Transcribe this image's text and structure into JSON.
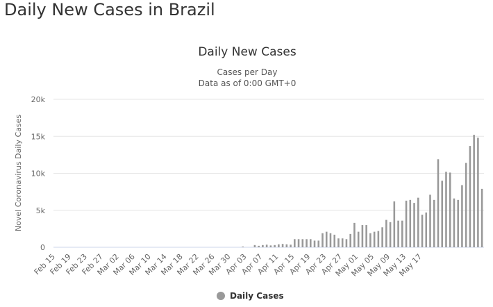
{
  "page": {
    "heading": "Daily New Cases in Brazil"
  },
  "chart_data": {
    "type": "bar",
    "title": "Daily New Cases",
    "subtitle_lines": [
      "Cases per Day",
      "Data as of 0:00 GMT+0"
    ],
    "ylabel": "Novel Coronavirus Daily Cases",
    "xlabel": "",
    "ylim": [
      0,
      20000
    ],
    "y_ticks": [
      0,
      5000,
      10000,
      15000,
      20000
    ],
    "y_tick_labels": [
      "0",
      "5k",
      "10k",
      "15k",
      "20k"
    ],
    "x_tick_labels": [
      "Feb 15",
      "Feb 19",
      "Feb 23",
      "Feb 27",
      "Mar 02",
      "Mar 06",
      "Mar 10",
      "Mar 14",
      "Mar 18",
      "Mar 22",
      "Mar 26",
      "Mar 30",
      "Apr 03",
      "Apr 07",
      "Apr 11",
      "Apr 15",
      "Apr 19",
      "Apr 23",
      "Apr 27",
      "May 01",
      "May 05",
      "May 09",
      "May 13",
      "May 17"
    ],
    "grid": true,
    "legend_position": "bottom-center",
    "series": [
      {
        "name": "Daily Cases",
        "color": "#999999",
        "start_date": "Feb 15",
        "values": [
          0,
          0,
          0,
          0,
          0,
          0,
          0,
          0,
          0,
          0,
          0,
          0,
          0,
          0,
          0,
          0,
          0,
          0,
          0,
          0,
          0,
          0,
          0,
          0,
          0,
          0,
          0,
          0,
          0,
          0,
          0,
          0,
          0,
          0,
          0,
          0,
          0,
          0,
          0,
          0,
          0,
          0,
          0,
          0,
          0,
          0,
          0,
          100,
          0,
          0,
          300,
          200,
          300,
          350,
          250,
          300,
          400,
          450,
          400,
          350,
          1100,
          1100,
          1100,
          1100,
          1100,
          900,
          900,
          1900,
          2100,
          1900,
          1700,
          1200,
          1200,
          1100,
          1800,
          3300,
          2100,
          3000,
          3000,
          1900,
          2100,
          2200,
          2700,
          3700,
          3400,
          6200,
          3600,
          3600,
          6300,
          6400,
          6000,
          6700,
          4400,
          4700,
          7100,
          6400,
          11900,
          9000,
          10200,
          10100,
          6600,
          6400,
          8400,
          11400,
          13700,
          15200,
          14800,
          7900
        ]
      }
    ]
  },
  "legend": {
    "label": "Daily Cases",
    "color": "#999999"
  }
}
